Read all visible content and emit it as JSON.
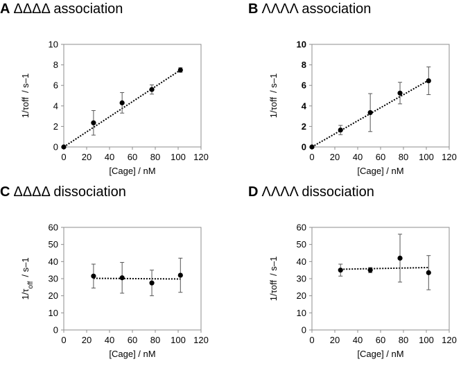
{
  "chart_data": [
    {
      "panel": "A",
      "title": "ΔΔΔΔ association",
      "type": "scatter",
      "xlabel": "[Cage] / nM",
      "ylabel_main": "1/τoff",
      "ylabel_sub": "",
      "ylabel_unit": "/ s–1",
      "bold_yticks": false,
      "xlim": [
        0,
        120
      ],
      "ylim": [
        0,
        10
      ],
      "xticks": [
        0,
        20,
        40,
        60,
        80,
        100,
        120
      ],
      "yticks": [
        0,
        2,
        4,
        6,
        8,
        10
      ],
      "points": [
        {
          "x": 0,
          "y": 0,
          "err": 0
        },
        {
          "x": 26,
          "y": 2.35,
          "err": 1.2
        },
        {
          "x": 51,
          "y": 4.3,
          "err": 1.0
        },
        {
          "x": 77,
          "y": 5.6,
          "err": 0.45
        },
        {
          "x": 102,
          "y": 7.5,
          "err": 0.22
        }
      ],
      "trendline": {
        "x": [
          0,
          102
        ],
        "y": [
          0,
          7.5
        ]
      }
    },
    {
      "panel": "B",
      "title": "ΛΛΛΛ association",
      "type": "scatter",
      "xlabel": "[Cage] / nM",
      "ylabel_main": "1/τoff",
      "ylabel_sub": "",
      "ylabel_unit": "/ s–1",
      "bold_yticks": true,
      "xlim": [
        0,
        120
      ],
      "ylim": [
        0,
        10
      ],
      "xticks": [
        0,
        20,
        40,
        60,
        80,
        100,
        120
      ],
      "yticks": [
        0,
        2,
        4,
        6,
        8,
        10
      ],
      "points": [
        {
          "x": 0,
          "y": 0,
          "err": 0
        },
        {
          "x": 25,
          "y": 1.65,
          "err": 0.45
        },
        {
          "x": 51,
          "y": 3.35,
          "err": 1.85
        },
        {
          "x": 77,
          "y": 5.25,
          "err": 1.05
        },
        {
          "x": 102,
          "y": 6.45,
          "err": 1.35
        }
      ],
      "trendline": {
        "x": [
          0,
          102
        ],
        "y": [
          0,
          6.5
        ]
      }
    },
    {
      "panel": "C",
      "title": "ΔΔΔΔ dissociation",
      "type": "scatter",
      "xlabel": "[Cage] / nM",
      "ylabel_main": "1/τ",
      "ylabel_sub": "off",
      "ylabel_unit": "/ s–1",
      "bold_yticks": false,
      "xlim": [
        0,
        120
      ],
      "ylim": [
        0,
        60
      ],
      "xticks": [
        0,
        20,
        40,
        60,
        80,
        100,
        120
      ],
      "yticks": [
        0,
        10,
        20,
        30,
        40,
        50,
        60
      ],
      "points": [
        {
          "x": 26,
          "y": 31.5,
          "err": 7.0
        },
        {
          "x": 51,
          "y": 30.5,
          "err": 9.0
        },
        {
          "x": 77,
          "y": 27.5,
          "err": 7.5
        },
        {
          "x": 102,
          "y": 32.0,
          "err": 10.0
        }
      ],
      "trendline": {
        "x": [
          26,
          102
        ],
        "y": [
          30.2,
          29.8
        ]
      }
    },
    {
      "panel": "D",
      "title": "ΛΛΛΛ dissociation",
      "type": "scatter",
      "xlabel": "[Cage] / nM",
      "ylabel_main": "1/τoff",
      "ylabel_sub": "",
      "ylabel_unit": "/ s–1",
      "bold_yticks": false,
      "xlim": [
        0,
        120
      ],
      "ylim": [
        0,
        60
      ],
      "xticks": [
        0,
        20,
        40,
        60,
        80,
        100,
        120
      ],
      "yticks": [
        0,
        10,
        20,
        30,
        40,
        50,
        60
      ],
      "points": [
        {
          "x": 25,
          "y": 35.0,
          "err": 3.5
        },
        {
          "x": 51,
          "y": 35.0,
          "err": 1.5
        },
        {
          "x": 77,
          "y": 42.0,
          "err": 14.0
        },
        {
          "x": 102,
          "y": 33.5,
          "err": 10.0
        }
      ],
      "trendline": {
        "x": [
          25,
          102
        ],
        "y": [
          35.5,
          36.5
        ]
      }
    }
  ]
}
